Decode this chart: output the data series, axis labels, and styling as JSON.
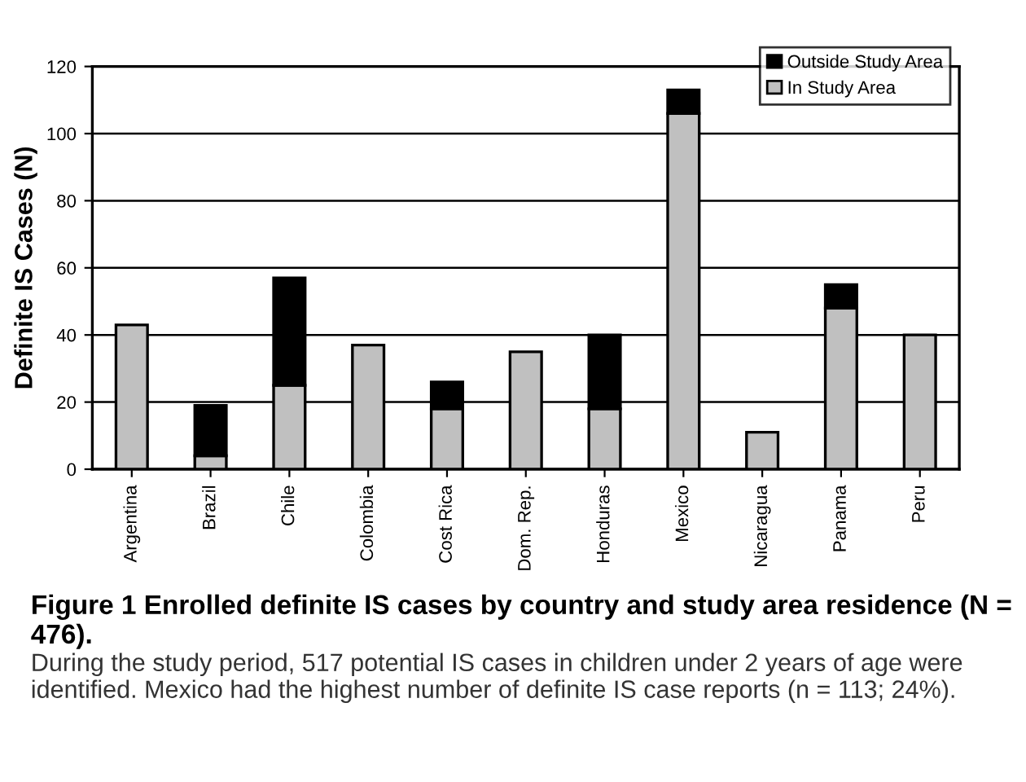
{
  "chart_data": {
    "type": "bar",
    "stacked": true,
    "title": "Figure 1 Enrolled definite IS cases by country and study area residence (N = 476).",
    "ylabel": "Definite IS Cases (N)",
    "categories": [
      "Argentina",
      "Brazil",
      "Chile",
      "Colombia",
      "Cost Rica",
      "Dom. Rep.",
      "Honduras",
      "Mexico",
      "Nicaragua",
      "Panama",
      "Peru"
    ],
    "series": [
      {
        "name": "In Study Area",
        "color": "#c0c0c0",
        "values": [
          43,
          4,
          25,
          37,
          18,
          35,
          18,
          106,
          11,
          48,
          40
        ]
      },
      {
        "name": "Outside Study Area",
        "color": "#000000",
        "values": [
          null,
          15,
          32,
          null,
          8,
          null,
          22,
          7,
          null,
          7,
          null
        ]
      }
    ],
    "ylim": [
      0,
      120
    ],
    "yticks": [
      0,
      20,
      40,
      60,
      80,
      100,
      120
    ],
    "grid": "y",
    "legend": "top right",
    "annotations": [
      "During the study period, 517 potential IS cases in children under 2 years of age were identified. Mexico had the highest number of definite IS case reports (n = 113; 24%)."
    ]
  }
}
